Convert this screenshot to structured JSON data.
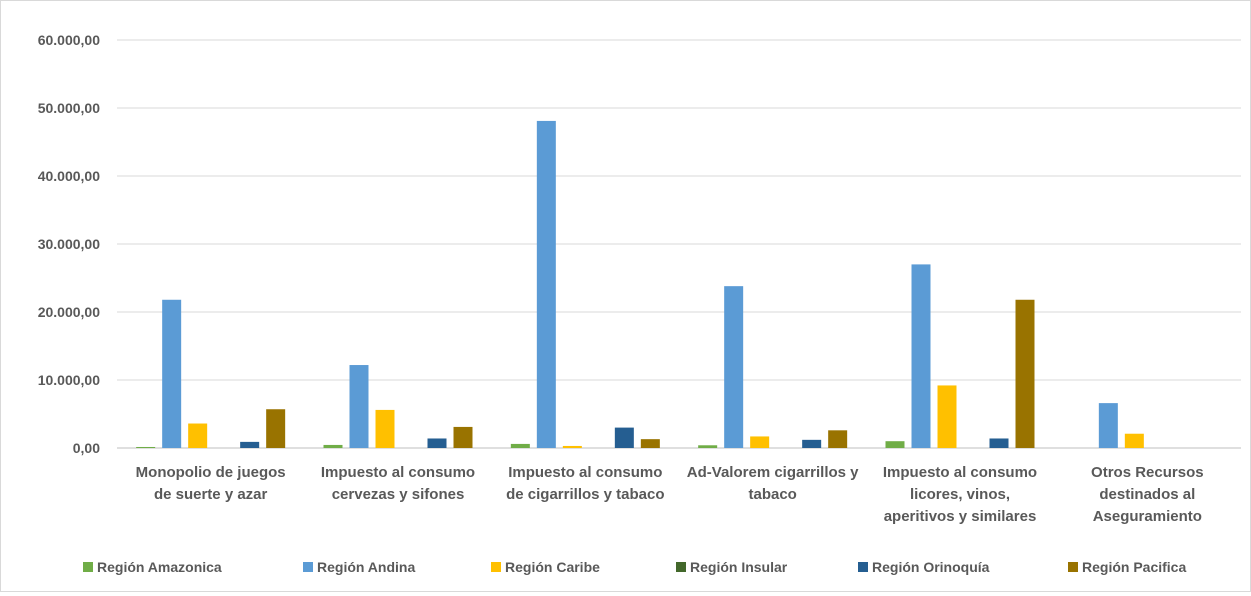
{
  "chart_data": {
    "type": "bar",
    "title": "",
    "xlabel": "",
    "ylabel": "",
    "ylim": [
      0,
      60000
    ],
    "yticks": [
      "0,00",
      "10.000,00",
      "20.000,00",
      "30.000,00",
      "40.000,00",
      "50.000,00",
      "60.000,00"
    ],
    "grid": true,
    "legend_position": "bottom",
    "categories": [
      [
        "Monopolio de juegos",
        "de suerte y azar"
      ],
      [
        "Impuesto al consumo",
        "cervezas y sifones"
      ],
      [
        "Impuesto al consumo",
        "de cigarrillos y tabaco"
      ],
      [
        "Ad-Valorem cigarrillos y",
        "tabaco"
      ],
      [
        "Impuesto al consumo",
        "licores, vinos,",
        "aperitivos y similares"
      ],
      [
        "Otros Recursos",
        "destinados al",
        "Aseguramiento"
      ]
    ],
    "series": [
      {
        "name": "Región Amazonica",
        "color": "#70ad47",
        "values": [
          150,
          450,
          600,
          400,
          1000,
          0
        ]
      },
      {
        "name": "Región Andina",
        "color": "#5b9bd5",
        "values": [
          21800,
          12200,
          48100,
          23800,
          27000,
          6600
        ]
      },
      {
        "name": "Región Caribe",
        "color": "#ffc000",
        "values": [
          3600,
          5600,
          300,
          1700,
          9200,
          2100
        ]
      },
      {
        "name": "Región Insular",
        "color": "#43682b",
        "values": [
          0,
          0,
          0,
          0,
          0,
          0
        ]
      },
      {
        "name": "Región Orinoquía",
        "color": "#255e91",
        "values": [
          900,
          1400,
          3000,
          1200,
          1400,
          0
        ]
      },
      {
        "name": "Región Pacifica",
        "color": "#997300",
        "values": [
          5700,
          3100,
          1300,
          2600,
          21800,
          0
        ]
      }
    ]
  }
}
